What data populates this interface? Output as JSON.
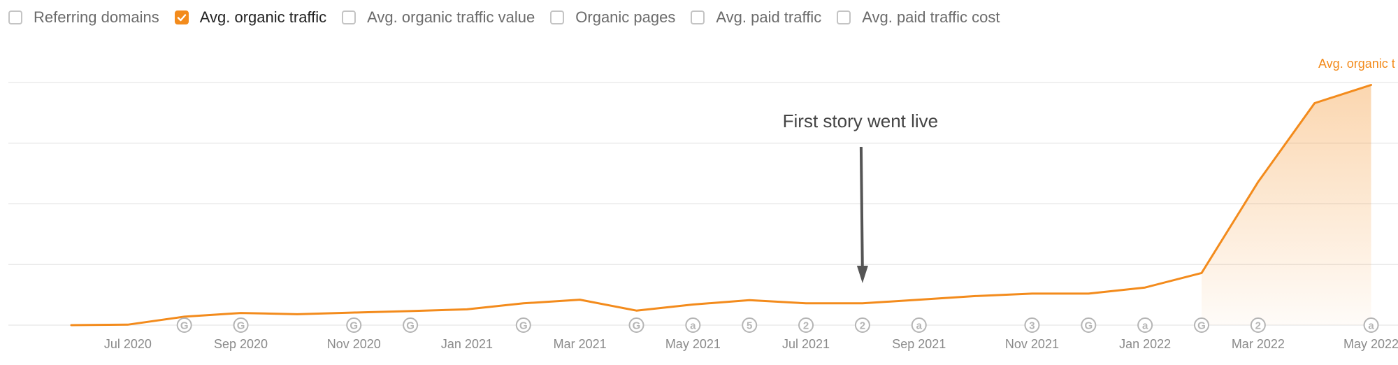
{
  "legend": {
    "items": [
      {
        "label": "Referring domains",
        "checked": false
      },
      {
        "label": "Avg. organic traffic",
        "checked": true
      },
      {
        "label": "Avg. organic traffic value",
        "checked": false
      },
      {
        "label": "Organic pages",
        "checked": false
      },
      {
        "label": "Avg. paid traffic",
        "checked": false
      },
      {
        "label": "Avg. paid traffic cost",
        "checked": false
      }
    ]
  },
  "colors": {
    "series": "#f38b1c",
    "grid": "#e6e6e6",
    "axis_text": "#8a8a8a",
    "annotation": "#555555",
    "marker": "#b5b5b5"
  },
  "chart_data": {
    "type": "area",
    "series": [
      {
        "name": "Avg. organic t",
        "x": [
          "2020-06",
          "2020-07",
          "2020-08",
          "2020-09",
          "2020-10",
          "2020-11",
          "2020-12",
          "2021-01",
          "2021-02",
          "2021-03",
          "2021-04",
          "2021-05",
          "2021-06",
          "2021-07",
          "2021-08",
          "2021-09",
          "2021-10",
          "2021-11",
          "2021-12",
          "2022-01",
          "2022-02",
          "2022-03",
          "2022-04",
          "2022-05"
        ],
        "values": [
          0,
          0.2,
          3.5,
          5,
          4.5,
          5.2,
          5.8,
          6.5,
          9,
          10.5,
          6,
          8.5,
          10.3,
          9,
          9,
          10.5,
          12,
          13,
          13,
          15.5,
          21.5,
          59,
          91.5,
          99
        ]
      }
    ],
    "x_ticks": [
      {
        "x": "2020-07",
        "label": "Jul 2020"
      },
      {
        "x": "2020-09",
        "label": "Sep 2020"
      },
      {
        "x": "2020-11",
        "label": "Nov 2020"
      },
      {
        "x": "2021-01",
        "label": "Jan 2021"
      },
      {
        "x": "2021-03",
        "label": "Mar 2021"
      },
      {
        "x": "2021-05",
        "label": "May 2021"
      },
      {
        "x": "2021-07",
        "label": "Jul 2021"
      },
      {
        "x": "2021-09",
        "label": "Sep 2021"
      },
      {
        "x": "2021-11",
        "label": "Nov 2021"
      },
      {
        "x": "2022-01",
        "label": "Jan 2022"
      },
      {
        "x": "2022-03",
        "label": "Mar 2022"
      },
      {
        "x": "2022-05",
        "label": "May 2022"
      }
    ],
    "markers": [
      {
        "x": "2020-08",
        "label": "G"
      },
      {
        "x": "2020-09",
        "label": "G"
      },
      {
        "x": "2020-11",
        "label": "G"
      },
      {
        "x": "2020-12",
        "label": "G"
      },
      {
        "x": "2021-02",
        "label": "G"
      },
      {
        "x": "2021-04",
        "label": "G"
      },
      {
        "x": "2021-05",
        "label": "a"
      },
      {
        "x": "2021-06",
        "label": "5"
      },
      {
        "x": "2021-07",
        "label": "2"
      },
      {
        "x": "2021-08",
        "label": "2"
      },
      {
        "x": "2021-09",
        "label": "a"
      },
      {
        "x": "2021-11",
        "label": "3"
      },
      {
        "x": "2021-12",
        "label": "G"
      },
      {
        "x": "2022-01",
        "label": "a"
      },
      {
        "x": "2022-02",
        "label": "G"
      },
      {
        "x": "2022-03",
        "label": "2"
      },
      {
        "x": "2022-05",
        "label": "a"
      }
    ],
    "annotation": {
      "text": "First story went live",
      "x": "2021-08"
    },
    "ylim": [
      0,
      100
    ],
    "y_gridlines": [
      0,
      25,
      50,
      75,
      100
    ],
    "grid": true,
    "legend_position": "top-left",
    "title": "",
    "xlabel": "",
    "ylabel": ""
  }
}
